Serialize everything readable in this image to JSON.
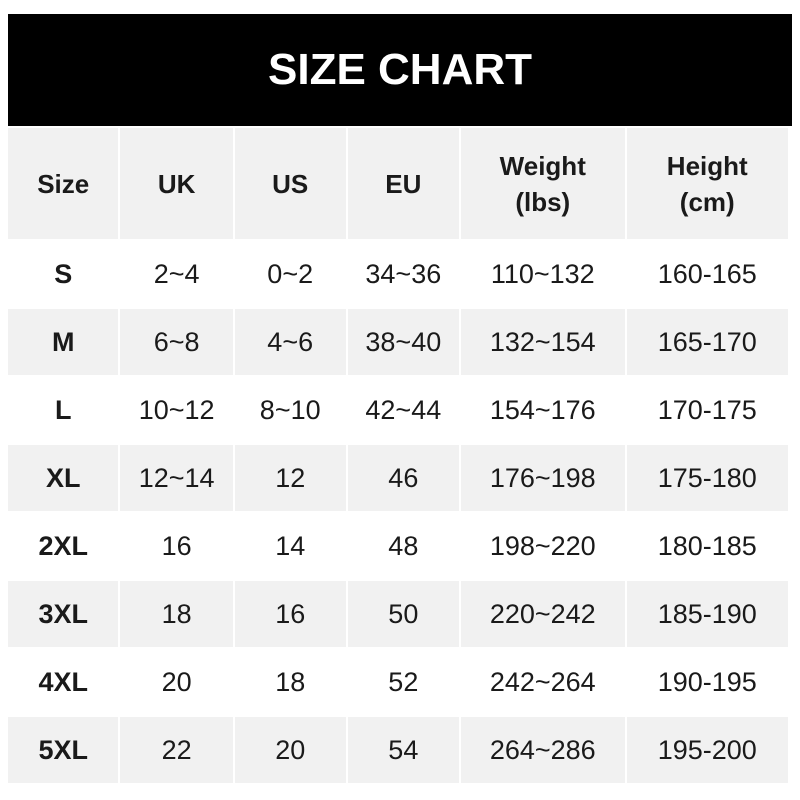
{
  "title": "SIZE CHART",
  "columns": [
    "Size",
    "UK",
    "US",
    "EU",
    "Weight\n(lbs)",
    "Height\n(cm)"
  ],
  "rows": [
    [
      "S",
      "2~4",
      "0~2",
      "34~36",
      "110~132",
      "160-165"
    ],
    [
      "M",
      "6~8",
      "4~6",
      "38~40",
      "132~154",
      "165-170"
    ],
    [
      "L",
      "10~12",
      "8~10",
      "42~44",
      "154~176",
      "170-175"
    ],
    [
      "XL",
      "12~14",
      "12",
      "46",
      "176~198",
      "175-180"
    ],
    [
      "2XL",
      "16",
      "14",
      "48",
      "198~220",
      "180-185"
    ],
    [
      "3XL",
      "18",
      "16",
      "50",
      "220~242",
      "185-190"
    ],
    [
      "4XL",
      "20",
      "18",
      "52",
      "242~264",
      "190-195"
    ],
    [
      "5XL",
      "22",
      "20",
      "54",
      "264~286",
      "195-200"
    ]
  ]
}
